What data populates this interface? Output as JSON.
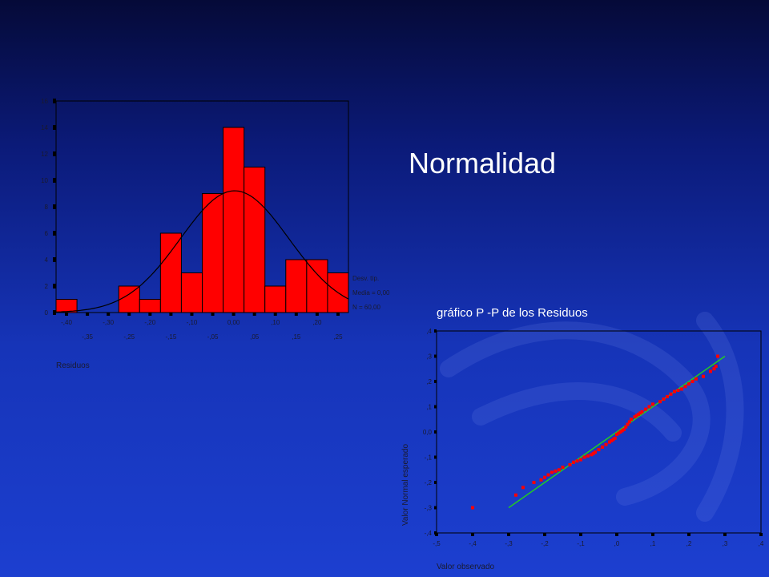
{
  "slide": {
    "title": "Normalidad"
  },
  "colors": {
    "bar": "#ff0000",
    "curve": "#000000",
    "label": "#1a1a2e",
    "point": "#ff0000",
    "ref_line": "#22cc22",
    "panel_line": "#000000"
  },
  "chart_data": [
    {
      "type": "bar",
      "title": "",
      "xlabel": "Residuos",
      "ylabel": "",
      "bin_width": 0.05,
      "bin_centers": [
        -0.4,
        -0.35,
        -0.3,
        -0.25,
        -0.2,
        -0.15,
        -0.1,
        -0.05,
        0.0,
        0.05,
        0.1,
        0.15,
        0.2,
        0.25
      ],
      "values": [
        1,
        0,
        0,
        2,
        1,
        6,
        3,
        9,
        14,
        11,
        2,
        4,
        4,
        3
      ],
      "xlim": [
        -0.425,
        0.275
      ],
      "ylim": [
        0,
        16
      ],
      "yticks": [
        0,
        2,
        4,
        6,
        8,
        10,
        12,
        14,
        16
      ],
      "ytick_labels": [
        "0",
        "2",
        "4",
        "6",
        "8",
        "10",
        "12",
        "14",
        "16"
      ],
      "xticks_top": [
        -0.4,
        -0.3,
        -0.2,
        -0.1,
        0.0,
        0.1,
        0.2
      ],
      "xtick_labels_top": [
        "-,40",
        "-,30",
        "-,20",
        "-,10",
        "0,00",
        ",10",
        ",20"
      ],
      "xticks_bottom": [
        -0.35,
        -0.25,
        -0.15,
        -0.05,
        0.05,
        0.15,
        0.25
      ],
      "xtick_labels_bottom": [
        "-,35",
        "-,25",
        "-,15",
        "-,05",
        ",05",
        ",15",
        ",25"
      ],
      "normal_curve": true,
      "grid": false,
      "legend": {
        "lines": [
          "Desv. típ.",
          "Media = 0,00",
          "N = 60,00"
        ]
      }
    },
    {
      "type": "scatter",
      "title": "gráfico P -P de los Residuos",
      "xlabel": "Valor observado",
      "ylabel": "Valor Normal esperado",
      "xlim": [
        -0.5,
        0.4
      ],
      "ylim": [
        -0.4,
        0.4
      ],
      "xticks": [
        -0.5,
        -0.4,
        -0.3,
        -0.2,
        -0.1,
        0.0,
        0.1,
        0.2,
        0.3,
        0.4
      ],
      "xtick_labels": [
        "-,5",
        "-,4",
        "-,3",
        "-,2",
        "-,1",
        ",0",
        ",1",
        ",2",
        ",3",
        ",4"
      ],
      "yticks": [
        -0.4,
        -0.3,
        -0.2,
        -0.1,
        0.0,
        0.1,
        0.2,
        0.3,
        0.4
      ],
      "ytick_labels": [
        "-,4",
        "-,3",
        "-,2",
        "-,1",
        "0,0",
        ",1",
        ",2",
        ",3",
        ",4"
      ],
      "reference_line": [
        [
          -0.3,
          -0.3
        ],
        [
          0.3,
          0.3
        ]
      ],
      "grid": false,
      "x": [
        -0.4,
        -0.28,
        -0.26,
        -0.23,
        -0.21,
        -0.2,
        -0.19,
        -0.18,
        -0.17,
        -0.16,
        -0.15,
        -0.13,
        -0.12,
        -0.11,
        -0.1,
        -0.09,
        -0.08,
        -0.07,
        -0.065,
        -0.06,
        -0.05,
        -0.04,
        -0.03,
        -0.02,
        -0.015,
        -0.01,
        -0.005,
        0.0,
        0.005,
        0.01,
        0.015,
        0.02,
        0.025,
        0.03,
        0.035,
        0.04,
        0.05,
        0.055,
        0.06,
        0.065,
        0.07,
        0.08,
        0.09,
        0.1,
        0.12,
        0.13,
        0.14,
        0.15,
        0.16,
        0.17,
        0.18,
        0.19,
        0.2,
        0.21,
        0.22,
        0.24,
        0.26,
        0.27,
        0.275,
        0.28
      ],
      "y": [
        -0.3,
        -0.25,
        -0.22,
        -0.2,
        -0.19,
        -0.18,
        -0.17,
        -0.16,
        -0.155,
        -0.15,
        -0.14,
        -0.13,
        -0.12,
        -0.115,
        -0.11,
        -0.1,
        -0.095,
        -0.09,
        -0.085,
        -0.08,
        -0.07,
        -0.06,
        -0.05,
        -0.04,
        -0.035,
        -0.03,
        -0.025,
        -0.01,
        -0.005,
        0.0,
        0.005,
        0.01,
        0.02,
        0.03,
        0.04,
        0.05,
        0.06,
        0.065,
        0.07,
        0.075,
        0.08,
        0.09,
        0.1,
        0.11,
        0.12,
        0.13,
        0.14,
        0.15,
        0.16,
        0.165,
        0.17,
        0.18,
        0.19,
        0.2,
        0.21,
        0.22,
        0.24,
        0.25,
        0.26,
        0.3
      ]
    }
  ]
}
